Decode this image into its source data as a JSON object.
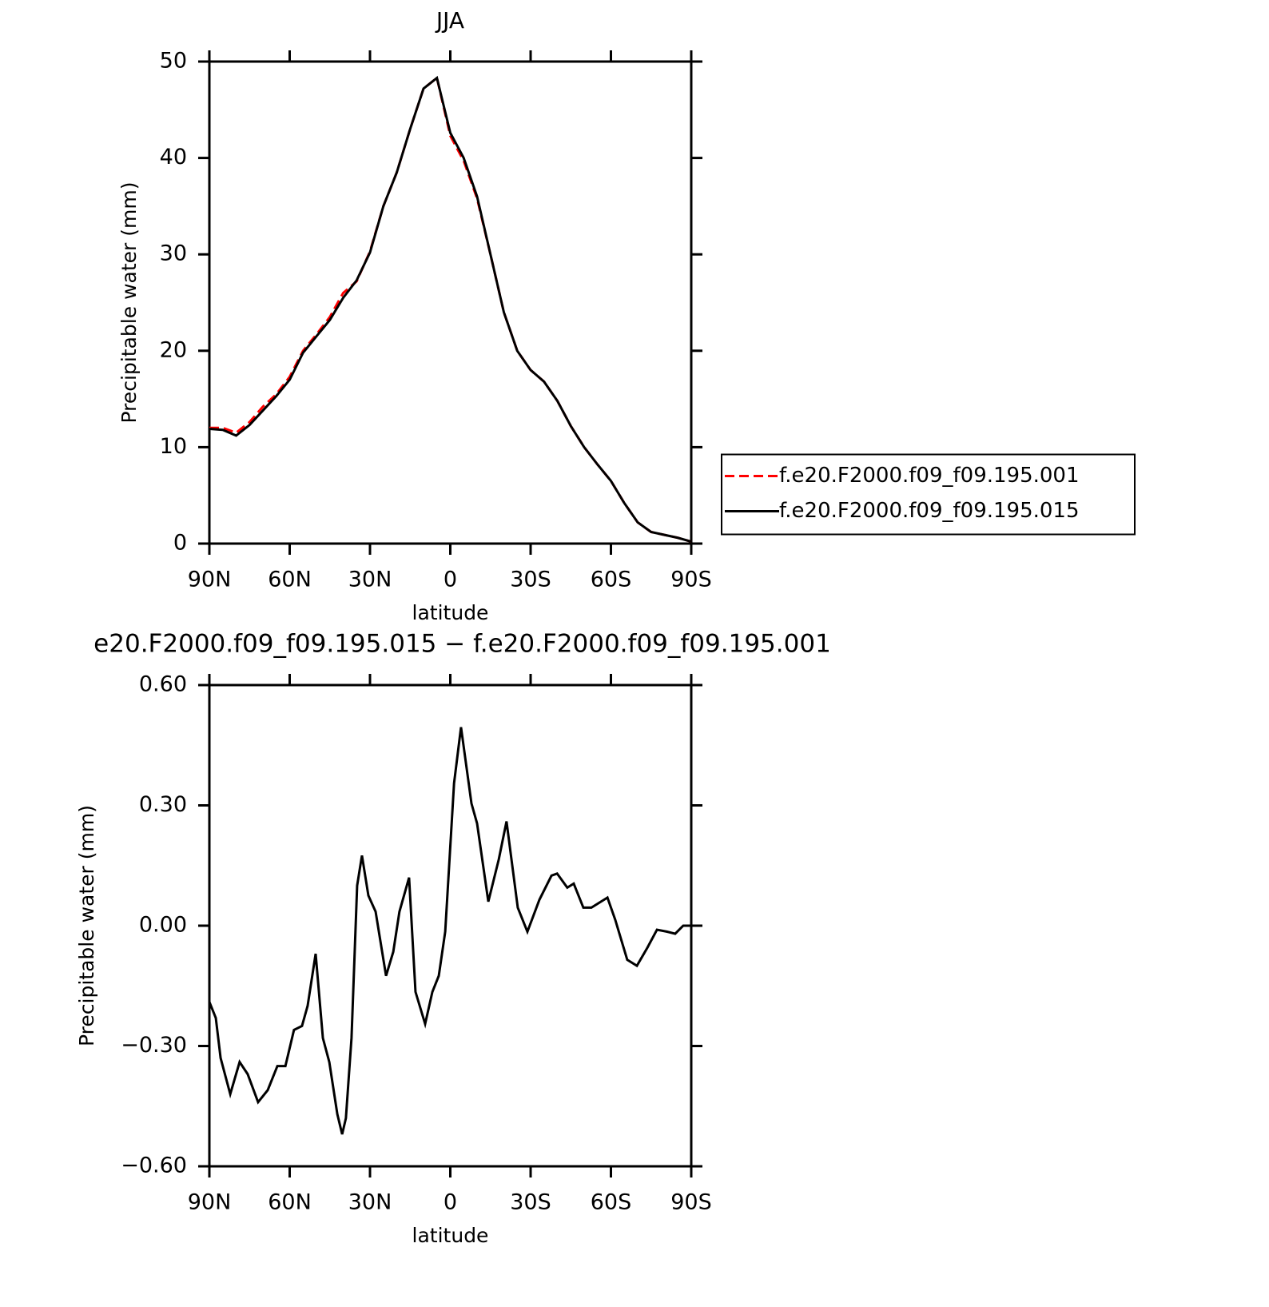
{
  "chart_data": [
    {
      "type": "line",
      "title": "JJA",
      "xlabel": "latitude",
      "ylabel": "Precipitable water (mm)",
      "x": [
        90,
        85,
        80,
        75,
        70,
        65,
        60,
        55,
        50,
        45,
        40,
        35,
        30,
        25,
        20,
        15,
        10,
        5,
        0,
        -5,
        -10,
        -15,
        -20,
        -25,
        -30,
        -35,
        -40,
        -45,
        -50,
        -55,
        -60,
        -65,
        -70,
        -75,
        -80,
        -85,
        -90
      ],
      "series": [
        {
          "name": "f.e20.F2000.f09_f09.195.001",
          "color": "#ff0000",
          "line_style": "dashed",
          "values": [
            12.0,
            12.0,
            11.5,
            12.6,
            14.2,
            15.5,
            17.3,
            20.0,
            21.7,
            23.5,
            26.0,
            27.2,
            30.3,
            35.0,
            38.5,
            43.0,
            47.2,
            48.3,
            42.3,
            39.7,
            35.8,
            30.0,
            24.0,
            20.0,
            18.0,
            16.8,
            14.8,
            12.2,
            10.0,
            8.2,
            6.5,
            4.2,
            2.2,
            1.2,
            0.9,
            0.6,
            0.2
          ]
        },
        {
          "name": "f.e20.F2000.f09_f09.195.015",
          "color": "#000000",
          "line_style": "solid",
          "values": [
            11.9,
            11.8,
            11.2,
            12.3,
            13.8,
            15.3,
            17.0,
            19.8,
            21.5,
            23.2,
            25.5,
            27.3,
            30.2,
            35.0,
            38.5,
            43.0,
            47.2,
            48.3,
            42.6,
            40.0,
            36.0,
            30.0,
            24.0,
            20.0,
            18.0,
            16.8,
            14.8,
            12.2,
            10.0,
            8.2,
            6.5,
            4.2,
            2.2,
            1.2,
            0.9,
            0.6,
            0.2
          ]
        }
      ],
      "xlim": [
        90,
        -90
      ],
      "xticks": [
        {
          "value": 90,
          "label": "90N"
        },
        {
          "value": 60,
          "label": "60N"
        },
        {
          "value": 30,
          "label": "30N"
        },
        0,
        {
          "value": -30,
          "label": "30S"
        },
        {
          "value": -60,
          "label": "60S"
        },
        {
          "value": -90,
          "label": "90S"
        }
      ],
      "ylim": [
        0,
        50
      ],
      "yticks": [
        0,
        10,
        20,
        30,
        40,
        50
      ],
      "legend": "right"
    },
    {
      "type": "line",
      "title": "e20.F2000.f09_f09.195.015 − f.e20.F2000.f09_f09.195.001",
      "xlabel": "latitude",
      "ylabel": "Precipitable water (mm)",
      "x": [
        90,
        87.6,
        85.8,
        82.2,
        78.7,
        75.7,
        71.8,
        68.2,
        64.6,
        61.6,
        58.4,
        55.4,
        53.3,
        50.3,
        47.6,
        45.2,
        42.2,
        40.4,
        39,
        36.9,
        34.8,
        33,
        30.6,
        27.9,
        24,
        21.3,
        19,
        15.4,
        13,
        9.4,
        6.7,
        4.3,
        1.9,
        -1.4,
        -4,
        -7.9,
        -10,
        -14.2,
        -18.1,
        -21,
        -25.2,
        -28.8,
        -33.3,
        -37.8,
        -39.9,
        -43.7,
        -46.1,
        -49.7,
        -52.7,
        -58.7,
        -61.6,
        -66.1,
        -69.7,
        -73.6,
        -77.2,
        -81,
        -84,
        -87,
        -90
      ],
      "series": [
        {
          "color": "#000000",
          "line_style": "solid",
          "values": [
            -0.19,
            -0.23,
            -0.33,
            -0.42,
            -0.34,
            -0.37,
            -0.44,
            -0.41,
            -0.35,
            -0.35,
            -0.26,
            -0.25,
            -0.2,
            -0.07,
            -0.28,
            -0.34,
            -0.47,
            -0.52,
            -0.48,
            -0.28,
            0.1,
            0.175,
            0.075,
            0.035,
            -0.125,
            -0.065,
            0.035,
            0.12,
            -0.165,
            -0.245,
            -0.165,
            -0.125,
            -0.015,
            0.355,
            0.495,
            0.305,
            0.255,
            0.06,
            0.165,
            0.26,
            0.045,
            -0.015,
            0.065,
            0.125,
            0.13,
            0.095,
            0.105,
            0.045,
            0.045,
            0.07,
            0.015,
            -0.085,
            -0.1,
            -0.055,
            -0.01,
            -0.015,
            -0.02,
            0.0,
            0.0
          ]
        }
      ],
      "xlim": [
        90,
        -90
      ],
      "xticks": [
        {
          "value": 90,
          "label": "90N"
        },
        {
          "value": 60,
          "label": "60N"
        },
        {
          "value": 30,
          "label": "30N"
        },
        0,
        {
          "value": -30,
          "label": "30S"
        },
        {
          "value": -60,
          "label": "60S"
        },
        {
          "value": -90,
          "label": "90S"
        }
      ],
      "ylim": [
        -0.6,
        0.6
      ],
      "yticks": [
        {
          "value": -0.6,
          "label": "−0.60"
        },
        {
          "value": -0.3,
          "label": "−0.30"
        },
        {
          "value": 0,
          "label": "0.00"
        },
        {
          "value": 0.3,
          "label": "0.30"
        },
        {
          "value": 0.6,
          "label": "0.60"
        }
      ]
    }
  ]
}
